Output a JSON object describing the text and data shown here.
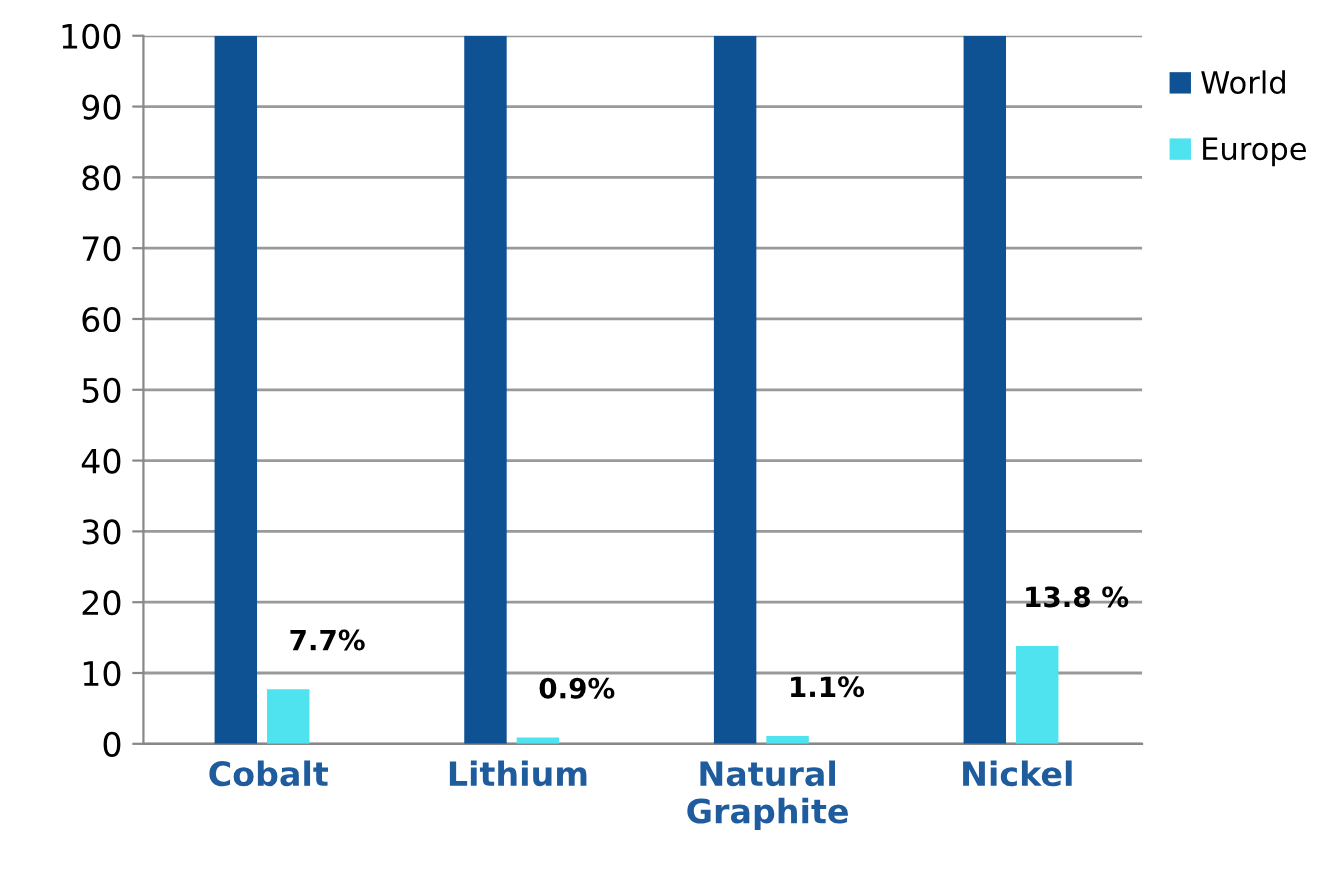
{
  "chart_data": {
    "type": "bar",
    "categories": [
      "Cobalt",
      "Lithium",
      "Natural\nGraphite",
      "Nickel"
    ],
    "series": [
      {
        "name": "World",
        "color": "#0f5294",
        "values": [
          100,
          100,
          100,
          100
        ]
      },
      {
        "name": "Europe",
        "color": "#4fe3f0",
        "values": [
          7.7,
          0.9,
          1.1,
          13.8
        ],
        "value_labels": [
          "7.7%",
          "0.9%",
          "1.1%",
          "13.8 %"
        ]
      }
    ],
    "ylim": [
      0,
      100
    ],
    "yticks": [
      0,
      10,
      20,
      30,
      40,
      50,
      60,
      70,
      80,
      90,
      100
    ],
    "grid": "y",
    "legend": "right"
  }
}
